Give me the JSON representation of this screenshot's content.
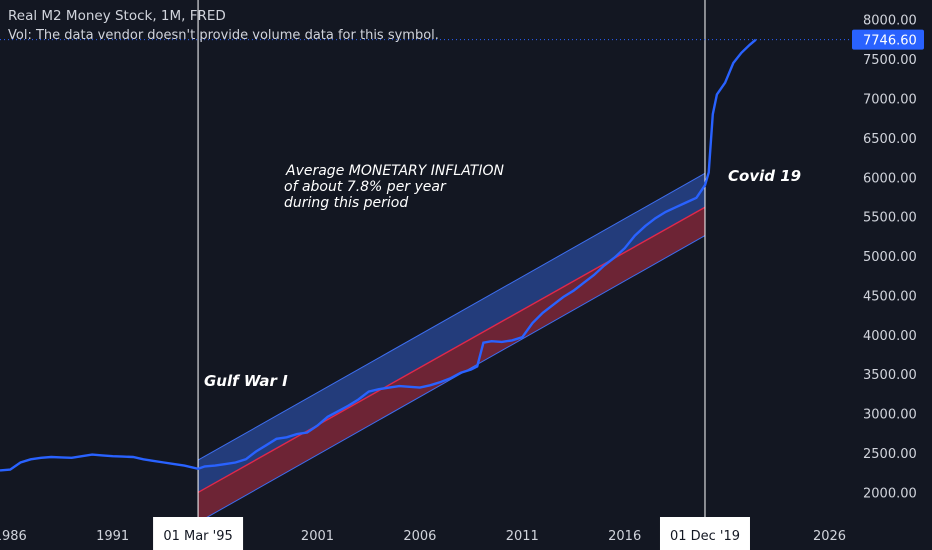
{
  "legend": {
    "title": "Real M2 Money Stock, 1M, FRED",
    "vol_note": "Vol: The data vendor doesn't provide volume data for this symbol."
  },
  "colors": {
    "background": "#131722",
    "series": "#2962ff",
    "channel_upper_fill": "#2a4a9a",
    "channel_lower_fill": "#8c2a3c",
    "channel_line": "#3d6ef0",
    "mid_line": "#e0284a",
    "last_price_badge": "#2962ff",
    "axis_text": "#d1d4dc"
  },
  "price_axis": {
    "ticks": [
      "8000.00",
      "7500.00",
      "7000.00",
      "6500.00",
      "6000.00",
      "5500.00",
      "5000.00",
      "4500.00",
      "4000.00",
      "3500.00",
      "3000.00",
      "2500.00",
      "2000.00"
    ],
    "last_price_label": "7746.60"
  },
  "time_axis": {
    "ticks": [
      "1986",
      "1991",
      "2001",
      "2006",
      "2011",
      "2016",
      "2026"
    ],
    "highlight_left": "01 Mar '95",
    "highlight_right": "01 Dec '19"
  },
  "annotations": {
    "gulf_war": "Gulf War I",
    "covid": "Covid 19",
    "inflation_line1": "Average MONETARY INFLATION",
    "inflation_line2": "of about 7.8% per year",
    "inflation_line3": "during this period"
  },
  "chart_data": {
    "type": "line",
    "title": "Real M2 Money Stock, 1M, FRED",
    "ylim": [
      1650,
      8250
    ],
    "xlim": [
      1985.5,
      2027
    ],
    "series": [
      {
        "name": "Real M2 Money Stock",
        "points": [
          [
            1985.5,
            2280
          ],
          [
            1986.0,
            2290
          ],
          [
            1986.5,
            2380
          ],
          [
            1987.0,
            2420
          ],
          [
            1987.5,
            2440
          ],
          [
            1988.0,
            2450
          ],
          [
            1988.5,
            2445
          ],
          [
            1989.0,
            2440
          ],
          [
            1989.5,
            2460
          ],
          [
            1990.0,
            2480
          ],
          [
            1990.5,
            2470
          ],
          [
            1991.0,
            2460
          ],
          [
            1991.5,
            2455
          ],
          [
            1992.0,
            2450
          ],
          [
            1992.5,
            2420
          ],
          [
            1993.0,
            2400
          ],
          [
            1993.5,
            2380
          ],
          [
            1994.0,
            2360
          ],
          [
            1994.5,
            2340
          ],
          [
            1995.17,
            2300
          ],
          [
            1995.5,
            2330
          ],
          [
            1996.0,
            2340
          ],
          [
            1996.5,
            2360
          ],
          [
            1997.0,
            2380
          ],
          [
            1997.5,
            2420
          ],
          [
            1998.0,
            2520
          ],
          [
            1998.5,
            2600
          ],
          [
            1999.0,
            2680
          ],
          [
            1999.5,
            2700
          ],
          [
            2000.0,
            2740
          ],
          [
            2000.5,
            2760
          ],
          [
            2001.0,
            2850
          ],
          [
            2001.5,
            2960
          ],
          [
            2002.0,
            3030
          ],
          [
            2002.5,
            3100
          ],
          [
            2003.0,
            3180
          ],
          [
            2003.5,
            3280
          ],
          [
            2004.0,
            3310
          ],
          [
            2004.5,
            3330
          ],
          [
            2005.0,
            3350
          ],
          [
            2005.5,
            3340
          ],
          [
            2006.0,
            3330
          ],
          [
            2006.5,
            3360
          ],
          [
            2007.0,
            3400
          ],
          [
            2007.5,
            3450
          ],
          [
            2008.0,
            3520
          ],
          [
            2008.5,
            3560
          ],
          [
            2008.8,
            3600
          ],
          [
            2009.1,
            3900
          ],
          [
            2009.5,
            3920
          ],
          [
            2010.0,
            3910
          ],
          [
            2010.5,
            3930
          ],
          [
            2011.0,
            3970
          ],
          [
            2011.5,
            4150
          ],
          [
            2012.0,
            4280
          ],
          [
            2012.5,
            4380
          ],
          [
            2013.0,
            4480
          ],
          [
            2013.5,
            4560
          ],
          [
            2014.0,
            4660
          ],
          [
            2014.5,
            4760
          ],
          [
            2015.0,
            4880
          ],
          [
            2015.5,
            4980
          ],
          [
            2016.0,
            5100
          ],
          [
            2016.5,
            5260
          ],
          [
            2017.0,
            5380
          ],
          [
            2017.5,
            5480
          ],
          [
            2018.0,
            5560
          ],
          [
            2018.5,
            5620
          ],
          [
            2019.0,
            5680
          ],
          [
            2019.5,
            5740
          ],
          [
            2019.92,
            5900
          ],
          [
            2020.1,
            6060
          ],
          [
            2020.3,
            6800
          ],
          [
            2020.5,
            7050
          ],
          [
            2020.9,
            7200
          ],
          [
            2021.3,
            7450
          ],
          [
            2021.7,
            7580
          ],
          [
            2022.1,
            7680
          ],
          [
            2022.4,
            7746.6
          ]
        ]
      }
    ],
    "channel": {
      "start_x": 1995.17,
      "end_x": 2019.92,
      "upper": [
        2410,
        6050
      ],
      "mid": [
        2000,
        5620
      ],
      "lower": [
        1620,
        5260
      ]
    },
    "markers": [
      1995.17,
      2019.92
    ],
    "grid": false,
    "last_value": 7746.6
  }
}
